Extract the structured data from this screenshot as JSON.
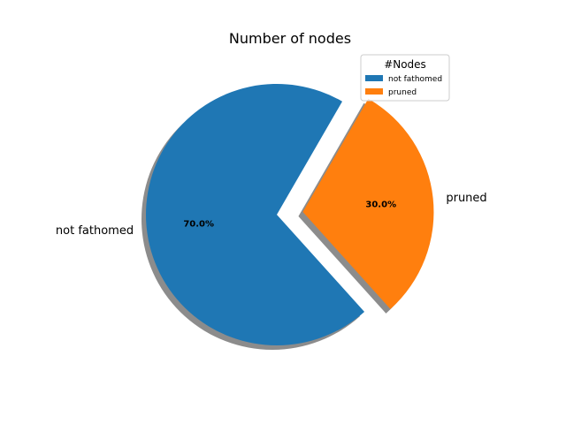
{
  "chart_data": {
    "type": "pie",
    "title": "Number of nodes",
    "labels": [
      "not fathomed",
      "pruned"
    ],
    "values": [
      70.0,
      30.0
    ],
    "percent_labels": [
      "70.0%",
      "30.0%"
    ],
    "colors": [
      "#1f77b4",
      "#ff7f0e"
    ],
    "explode": [
      0,
      0.2
    ],
    "shadow": true,
    "start_angle_deg": 60,
    "legend": {
      "title": "#Nodes",
      "placement": "upper-right",
      "entries": [
        "not fathomed",
        "pruned"
      ]
    }
  }
}
